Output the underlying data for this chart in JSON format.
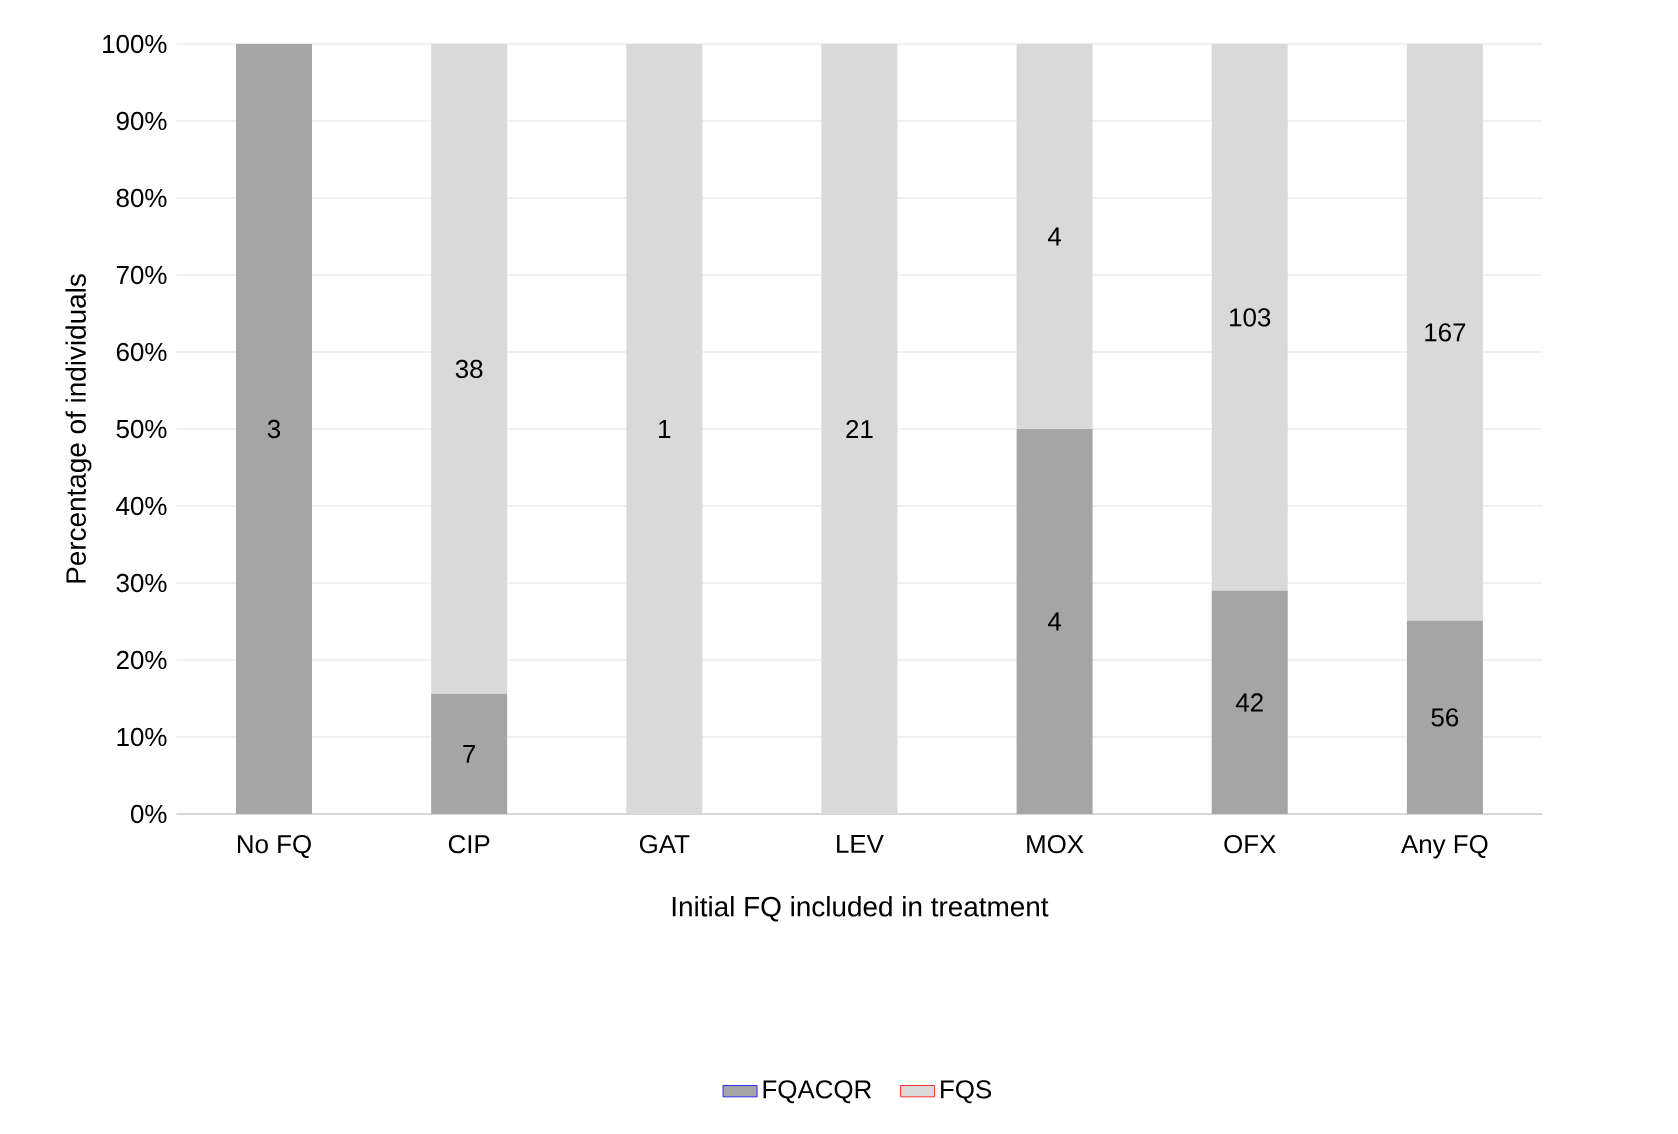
{
  "chart_data": {
    "type": "bar",
    "stacked": true,
    "xlabel": "Initial FQ included in treatment",
    "ylabel": "Percentage of individuals",
    "categories": [
      "No FQ",
      "CIP",
      "GAT",
      "LEV",
      "MOX",
      "OFX",
      "Any FQ"
    ],
    "series": [
      {
        "name": "FQACQR",
        "color": "#a5a5a5",
        "values": [
          100,
          15.6,
          0,
          0,
          50,
          29,
          25.1
        ]
      },
      {
        "name": "FQS",
        "color": "#d9d9d9",
        "values": [
          0,
          84.4,
          100,
          100,
          50,
          71,
          74.9
        ]
      }
    ],
    "annotations": [
      "3",
      "7",
      "38",
      "1",
      "21",
      "4",
      "4",
      "42",
      "103",
      "56",
      "167"
    ],
    "ylim": [
      0,
      100
    ],
    "yticks": [
      {
        "value": 0,
        "label": "0%"
      },
      {
        "value": 10,
        "label": "10%"
      },
      {
        "value": 20,
        "label": "20%"
      },
      {
        "value": 30,
        "label": "30%"
      },
      {
        "value": 40,
        "label": "40%"
      },
      {
        "value": 50,
        "label": "50%"
      },
      {
        "value": 60,
        "label": "60%"
      },
      {
        "value": 70,
        "label": "70%"
      },
      {
        "value": 80,
        "label": "80%"
      },
      {
        "value": 90,
        "label": "90%"
      },
      {
        "value": 100,
        "label": "100%"
      }
    ],
    "grid": "y",
    "legend": "bottom"
  }
}
